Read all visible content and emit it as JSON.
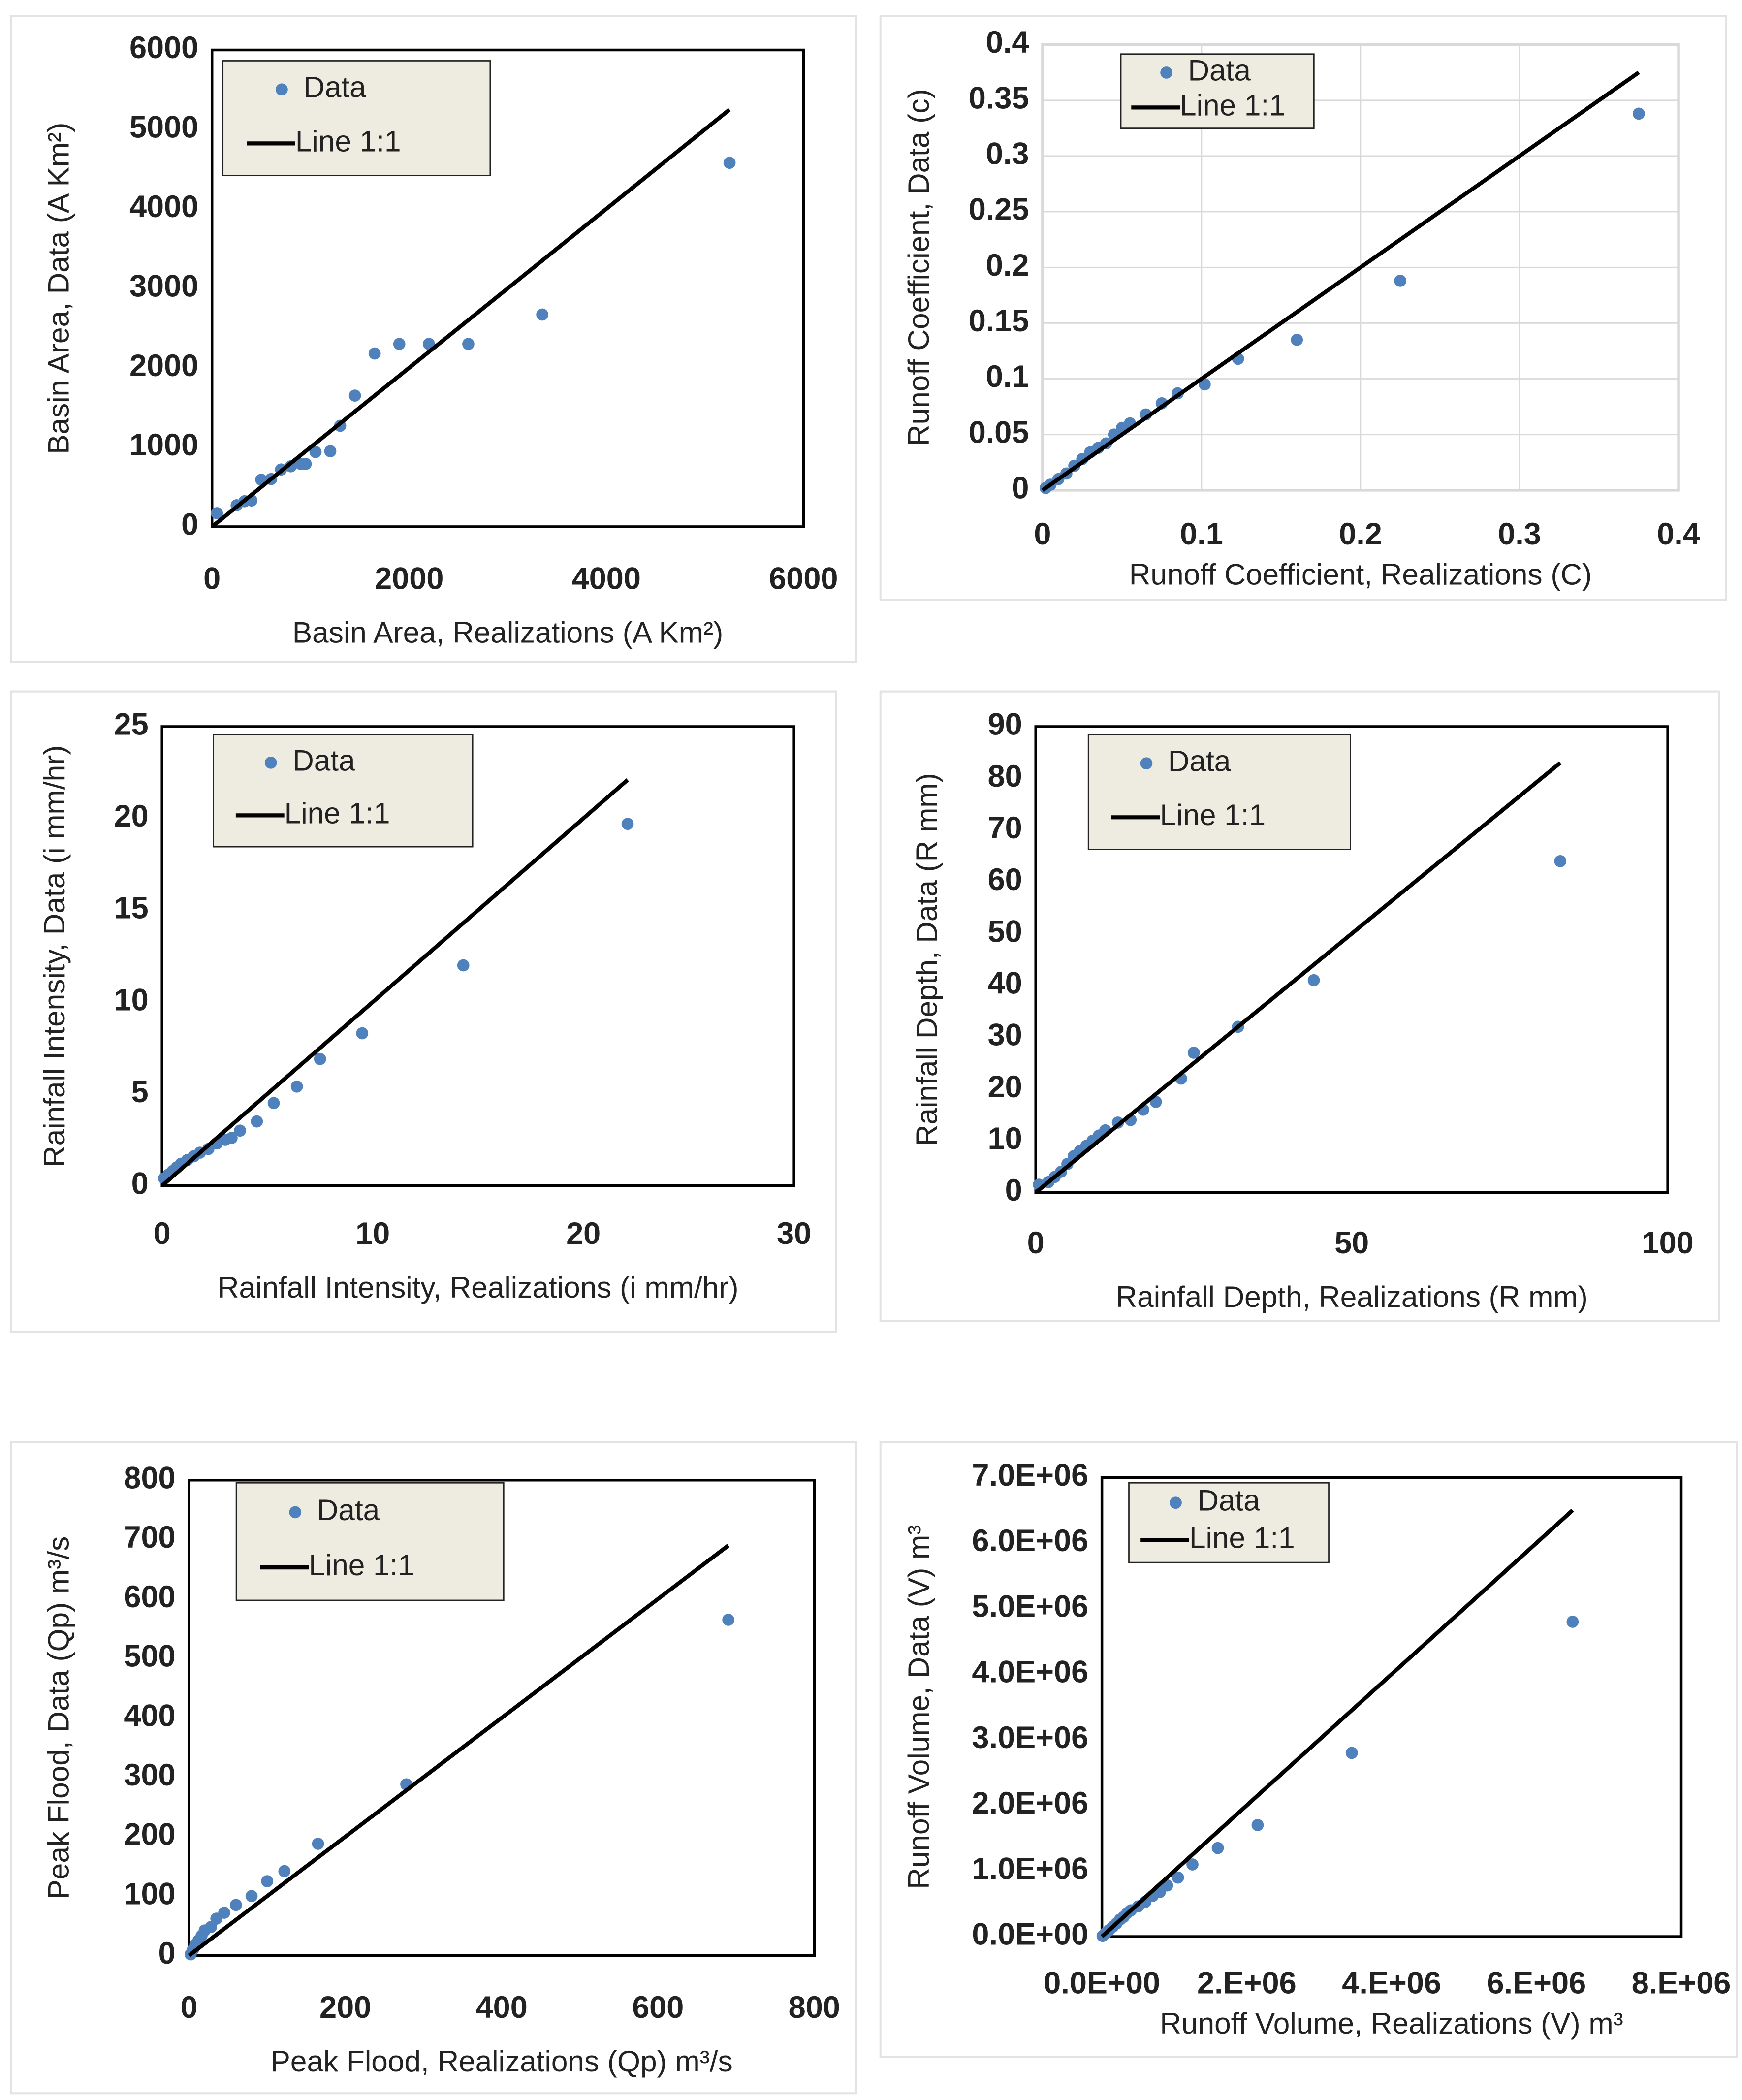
{
  "chart_data": [
    {
      "type": "scatter",
      "xlabel": "Basin Area, Realizations (A Km²)",
      "ylabel": "Basin Area, Data (A Km²)",
      "xlim": [
        0,
        6000
      ],
      "ylim": [
        0,
        6000
      ],
      "xticks": [
        0,
        2000,
        4000,
        6000
      ],
      "yticks": [
        0,
        1000,
        2000,
        3000,
        4000,
        5000,
        6000
      ],
      "grid": false,
      "legend": "upper left",
      "series": [
        {
          "name": "Data",
          "type": "scatter",
          "color": "#4f81bd",
          "x": [
            50,
            250,
            330,
            400,
            500,
            600,
            700,
            800,
            900,
            950,
            1050,
            1200,
            1300,
            1450,
            1650,
            1900,
            2200,
            2600,
            3350,
            5250
          ],
          "values": [
            170,
            270,
            320,
            330,
            590,
            600,
            720,
            760,
            790,
            790,
            940,
            950,
            1270,
            1650,
            2180,
            2300,
            2300,
            2300,
            2670,
            4580
          ]
        },
        {
          "name": "Line 1:1",
          "type": "line",
          "color": "#000000",
          "x": [
            0,
            5250
          ],
          "values": [
            0,
            5250
          ]
        }
      ]
    },
    {
      "type": "scatter",
      "xlabel": "Runoff Coefficient, Realizations (C)",
      "ylabel": "Runoff Coefficient, Data (c)",
      "xlim": [
        0,
        0.4
      ],
      "ylim": [
        0,
        0.4
      ],
      "xticks": [
        0,
        0.1,
        0.2,
        0.3,
        0.4
      ],
      "yticks": [
        0,
        0.05,
        0.1,
        0.15,
        0.2,
        0.25,
        0.3,
        0.35,
        0.4
      ],
      "grid": true,
      "legend": "upper left",
      "series": [
        {
          "name": "Data",
          "type": "scatter",
          "color": "#4f81bd",
          "x": [
            0.002,
            0.005,
            0.01,
            0.015,
            0.02,
            0.025,
            0.03,
            0.035,
            0.04,
            0.045,
            0.05,
            0.055,
            0.065,
            0.075,
            0.085,
            0.102,
            0.123,
            0.16,
            0.225,
            0.375
          ],
          "values": [
            0.002,
            0.005,
            0.01,
            0.015,
            0.022,
            0.028,
            0.034,
            0.038,
            0.042,
            0.05,
            0.056,
            0.06,
            0.068,
            0.078,
            0.087,
            0.095,
            0.118,
            0.135,
            0.188,
            0.338
          ]
        },
        {
          "name": "Line 1:1",
          "type": "line",
          "color": "#000000",
          "x": [
            0,
            0.375
          ],
          "values": [
            0,
            0.375
          ]
        }
      ]
    },
    {
      "type": "scatter",
      "xlabel": "Rainfall Intensity, Realizations (i mm/hr)",
      "ylabel": "Rainfall Intensity, Data (i mm/hr)",
      "xlim": [
        0,
        30
      ],
      "ylim": [
        0,
        25
      ],
      "xticks": [
        0,
        10,
        20,
        30
      ],
      "yticks": [
        0,
        5,
        10,
        15,
        20,
        25
      ],
      "grid": false,
      "legend": "upper left",
      "series": [
        {
          "name": "Data",
          "type": "scatter",
          "color": "#4f81bd",
          "x": [
            0.1,
            0.3,
            0.5,
            0.7,
            0.9,
            1.2,
            1.5,
            1.8,
            2.2,
            2.6,
            3.0,
            3.3,
            3.7,
            4.5,
            5.3,
            6.4,
            7.5,
            9.5,
            14.3,
            22.1
          ],
          "values": [
            0.4,
            0.6,
            0.8,
            1.0,
            1.2,
            1.4,
            1.6,
            1.8,
            2.0,
            2.3,
            2.5,
            2.6,
            3.0,
            3.5,
            4.5,
            5.4,
            6.9,
            8.3,
            12.0,
            19.7
          ]
        },
        {
          "name": "Line 1:1",
          "type": "line",
          "color": "#000000",
          "x": [
            0,
            22.1
          ],
          "values": [
            0,
            22.1
          ]
        }
      ]
    },
    {
      "type": "scatter",
      "xlabel": "Rainfall Depth, Realizations (R mm)",
      "ylabel": "Rainfall Depth, Data (R mm)",
      "xlim": [
        0,
        100
      ],
      "ylim": [
        0,
        90
      ],
      "xticks": [
        0,
        50,
        100
      ],
      "yticks": [
        0,
        10,
        20,
        30,
        40,
        50,
        60,
        70,
        80,
        90
      ],
      "grid": false,
      "legend": "upper left",
      "series": [
        {
          "name": "Data",
          "type": "scatter",
          "color": "#4f81bd",
          "x": [
            0.5,
            2,
            3,
            4,
            5,
            6,
            7,
            8,
            9,
            10,
            11,
            13,
            15,
            17,
            19,
            23,
            25,
            32,
            44,
            83
          ],
          "values": [
            1.5,
            2,
            3,
            4,
            5.5,
            7,
            8,
            9,
            10,
            11,
            12,
            13.5,
            14,
            16,
            17.5,
            22,
            27,
            32,
            41,
            64
          ]
        },
        {
          "name": "Line 1:1",
          "type": "line",
          "color": "#000000",
          "x": [
            0,
            83
          ],
          "values": [
            0,
            83
          ]
        }
      ]
    },
    {
      "type": "scatter",
      "xlabel": "Peak Flood, Realizations (Qp) m³/s",
      "ylabel": "Peak Flood, Data (Qp) m³/s",
      "xlim": [
        0,
        800
      ],
      "ylim": [
        0,
        800
      ],
      "xticks": [
        0,
        200,
        400,
        600,
        800
      ],
      "yticks": [
        0,
        100,
        200,
        300,
        400,
        500,
        600,
        700,
        800
      ],
      "grid": false,
      "legend": "upper left",
      "series": [
        {
          "name": "Data",
          "type": "scatter",
          "color": "#4f81bd",
          "x": [
            2,
            5,
            8,
            12,
            16,
            20,
            28,
            35,
            45,
            60,
            80,
            100,
            122,
            165,
            278,
            690
          ],
          "values": [
            2,
            10,
            18,
            25,
            33,
            42,
            48,
            62,
            72,
            85,
            100,
            125,
            142,
            188,
            288,
            565
          ]
        },
        {
          "name": "Line 1:1",
          "type": "line",
          "color": "#000000",
          "x": [
            0,
            690
          ],
          "values": [
            0,
            690
          ]
        }
      ]
    },
    {
      "type": "scatter",
      "xlabel": "Runoff Volume, Realizations (V) m³",
      "ylabel": "Runoff Volume, Data (V) m³",
      "xlim": [
        0,
        8000000
      ],
      "ylim": [
        0,
        7000000
      ],
      "xticks": [
        {
          "value": 0,
          "label": "0.0E+00"
        },
        {
          "value": 2000000,
          "label": "2.E+06"
        },
        {
          "value": 4000000,
          "label": "4.E+06"
        },
        {
          "value": 6000000,
          "label": "6.E+06"
        },
        {
          "value": 8000000,
          "label": "8.E+06"
        }
      ],
      "yticks": [
        {
          "value": 0,
          "label": "0.0E+00"
        },
        {
          "value": 1000000,
          "label": "1.0E+06"
        },
        {
          "value": 2000000,
          "label": "2.0E+06"
        },
        {
          "value": 3000000,
          "label": "3.0E+06"
        },
        {
          "value": 4000000,
          "label": "4.0E+06"
        },
        {
          "value": 5000000,
          "label": "5.0E+06"
        },
        {
          "value": 6000000,
          "label": "6.0E+06"
        },
        {
          "value": 7000000,
          "label": "7.0E+06"
        }
      ],
      "grid": false,
      "legend": "upper left",
      "series": [
        {
          "name": "Data",
          "type": "scatter",
          "color": "#4f81bd",
          "x": [
            10000,
            50000,
            100000,
            150000,
            200000,
            250000,
            300000,
            350000,
            400000,
            500000,
            600000,
            700000,
            800000,
            900000,
            1050000,
            1250000,
            1600000,
            2150000,
            3450000,
            6500000
          ],
          "values": [
            10000,
            50000,
            100000,
            150000,
            200000,
            260000,
            300000,
            360000,
            400000,
            460000,
            530000,
            620000,
            680000,
            780000,
            900000,
            1100000,
            1350000,
            1700000,
            2800000,
            4800000
          ]
        },
        {
          "name": "Line 1:1",
          "type": "line",
          "color": "#000000",
          "x": [
            0,
            6500000
          ],
          "values": [
            0,
            6500000
          ]
        }
      ]
    }
  ]
}
